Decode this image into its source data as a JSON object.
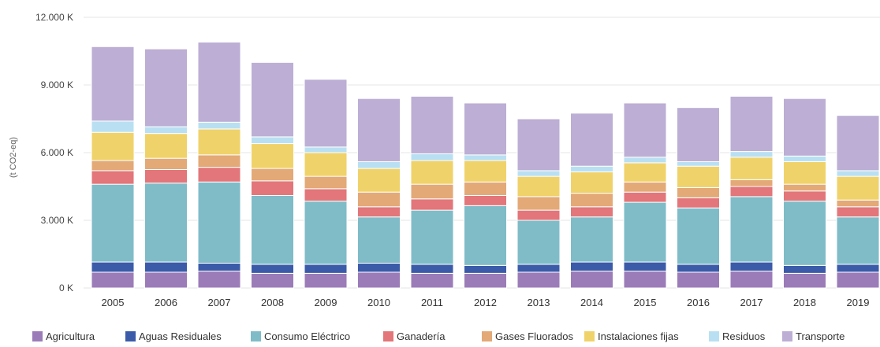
{
  "chart_data": {
    "type": "bar",
    "stacked": true,
    "title": "",
    "xlabel": "",
    "ylabel": "(t CO2-eq)",
    "ylim": [
      0,
      12000
    ],
    "y_ticks": [
      "0 K",
      "3.000 K",
      "6.000 K",
      "9.000 K",
      "12.000 K"
    ],
    "y_tick_values": [
      0,
      3000,
      6000,
      9000,
      12000
    ],
    "grid": true,
    "legend_position": "bottom",
    "categories": [
      "2005",
      "2006",
      "2007",
      "2008",
      "2009",
      "2010",
      "2011",
      "2012",
      "2013",
      "2014",
      "2015",
      "2016",
      "2017",
      "2018",
      "2019"
    ],
    "series": [
      {
        "name": "Agricultura",
        "color": "#9b7cb8",
        "values": [
          700,
          700,
          750,
          650,
          650,
          700,
          650,
          650,
          700,
          750,
          750,
          700,
          750,
          650,
          700
        ]
      },
      {
        "name": "Aguas Residuales",
        "color": "#3b5ba9",
        "values": [
          450,
          450,
          350,
          400,
          400,
          400,
          400,
          350,
          350,
          400,
          400,
          350,
          400,
          350,
          350
        ]
      },
      {
        "name": "Consumo Eléctrico",
        "color": "#7fbcc8",
        "values": [
          3450,
          3500,
          3600,
          3050,
          2800,
          2050,
          2400,
          2650,
          1950,
          2000,
          2650,
          2500,
          2900,
          2850,
          2100
        ]
      },
      {
        "name": "Ganadería",
        "color": "#e2767a",
        "values": [
          600,
          600,
          650,
          650,
          550,
          450,
          500,
          450,
          450,
          450,
          450,
          450,
          450,
          450,
          450
        ]
      },
      {
        "name": "Gases Fluorados",
        "color": "#e3a977",
        "values": [
          450,
          500,
          550,
          550,
          550,
          650,
          650,
          600,
          600,
          600,
          450,
          450,
          300,
          300,
          300
        ]
      },
      {
        "name": "Instalaciones fijas",
        "color": "#f0d26a",
        "values": [
          1250,
          1100,
          1150,
          1100,
          1050,
          1050,
          1050,
          950,
          900,
          950,
          850,
          950,
          1000,
          1000,
          1050
        ]
      },
      {
        "name": "Residuos",
        "color": "#b9e0f2",
        "values": [
          500,
          300,
          300,
          300,
          250,
          300,
          300,
          250,
          250,
          250,
          250,
          200,
          250,
          250,
          250
        ]
      },
      {
        "name": "Transporte",
        "color": "#bcaed4",
        "values": [
          3300,
          3450,
          3550,
          3300,
          3000,
          2800,
          2550,
          2300,
          2300,
          2350,
          2400,
          2400,
          2450,
          2550,
          2450
        ]
      }
    ]
  }
}
